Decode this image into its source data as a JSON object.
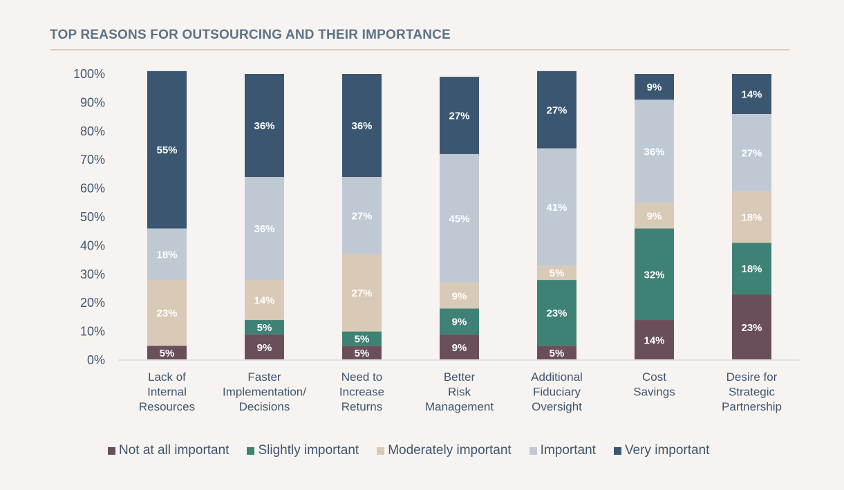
{
  "chart_data": {
    "type": "bar",
    "stacked": true,
    "title": "TOP REASONS FOR OUTSOURCING AND THEIR IMPORTANCE",
    "xlabel": "",
    "ylabel": "",
    "ylim": [
      0,
      100
    ],
    "yticks": [
      "0%",
      "10%",
      "20%",
      "30%",
      "40%",
      "50%",
      "60%",
      "70%",
      "80%",
      "90%",
      "100%"
    ],
    "grid": false,
    "legend_position": "bottom",
    "categories": [
      [
        "Lack of",
        "Internal",
        "Resources"
      ],
      [
        "Faster",
        "Implementation/",
        "Decisions"
      ],
      [
        "Need to",
        "Increase",
        "Returns"
      ],
      [
        "Better",
        "Risk",
        "Management"
      ],
      [
        "Additional",
        "Fiduciary",
        "Oversight"
      ],
      [
        "Cost",
        "Savings"
      ],
      [
        "Desire for",
        "Strategic",
        "Partnership"
      ]
    ],
    "series": [
      {
        "name": "Not at all important",
        "color": "#6a4f5b",
        "values": [
          5,
          9,
          5,
          9,
          5,
          14,
          23
        ]
      },
      {
        "name": "Slightly important",
        "color": "#3e8175",
        "values": [
          0,
          5,
          5,
          9,
          23,
          32,
          18
        ]
      },
      {
        "name": "Moderately important",
        "color": "#d9c9b7",
        "values": [
          23,
          14,
          27,
          9,
          5,
          9,
          18
        ]
      },
      {
        "name": "Important",
        "color": "#bfc9d3",
        "values": [
          18,
          36,
          27,
          45,
          41,
          36,
          27
        ]
      },
      {
        "name": "Very important",
        "color": "#3a5670",
        "values": [
          55,
          36,
          36,
          27,
          27,
          9,
          14
        ]
      }
    ]
  }
}
